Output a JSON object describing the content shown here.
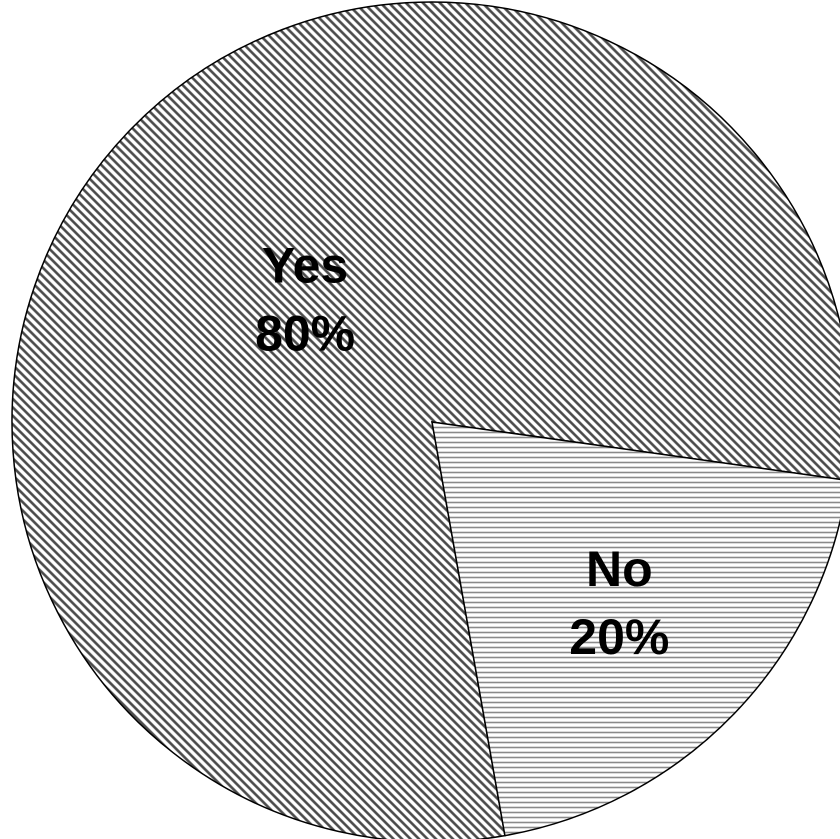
{
  "chart_data": {
    "type": "pie",
    "categories": [
      "Yes",
      "No"
    ],
    "values": [
      80,
      20
    ],
    "value_labels": [
      "80%",
      "20%"
    ],
    "colors": [
      "#4a4a4a",
      "#8a8a8a"
    ]
  }
}
